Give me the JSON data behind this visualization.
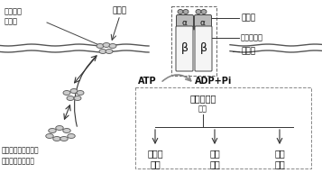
{
  "bg_color": "#ffffff",
  "labels": {
    "insulin": "胰岛素",
    "receptor": "胰岛素受体",
    "membrane": "细胞膜",
    "glucose": "葡萄糖",
    "transporter": "葡萄糖转\n运蛋白",
    "vesicle_text": "葡萄糖转运蛋白贮存\n于细胞内的囊泡上",
    "atp": "ATP",
    "adp": "ADP+Pi",
    "enzyme_phospho": "酶的磷酸化",
    "promote": "促进",
    "protein_syn": "蛋白质\n合成",
    "fat_syn": "脂肪\n合成",
    "glycogen_syn": "糖原\n合成"
  },
  "colors": {
    "text_color": "#111111",
    "membrane_color": "#555555",
    "receptor_fill": "#dddddd",
    "beta_fill": "#f5f5f5",
    "alpha_fill": "#bbbbbb",
    "ellipse_fill": "#cccccc",
    "ellipse_edge": "#555555",
    "arrow_color": "#333333",
    "dashed_color": "#777777"
  },
  "font_size_main": 7.0,
  "font_size_small": 6.0,
  "font_size_label": 6.5
}
